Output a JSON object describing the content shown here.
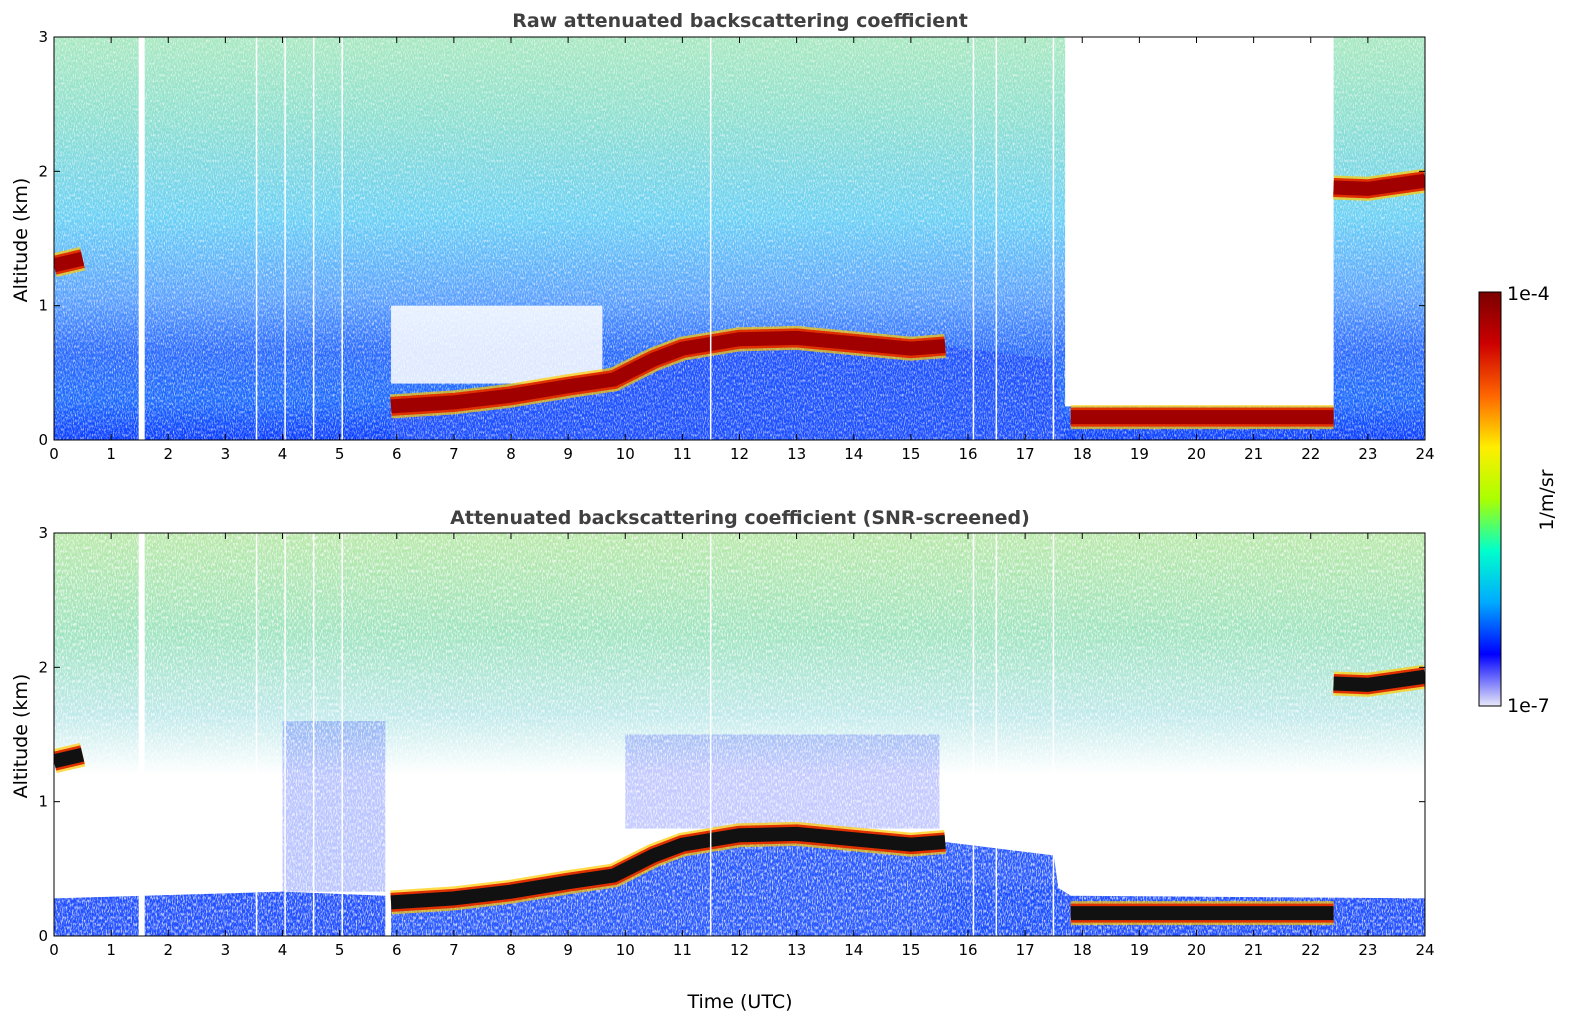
{
  "chart_data": [
    {
      "type": "heatmap",
      "title": "Raw attenuated backscattering coefficient",
      "xlabel": "",
      "ylabel": "Altitude (km)",
      "xlim": [
        0,
        24
      ],
      "ylim": [
        0,
        3
      ],
      "xticks": [
        "0",
        "1",
        "2",
        "3",
        "4",
        "5",
        "6",
        "7",
        "8",
        "9",
        "10",
        "11",
        "12",
        "13",
        "14",
        "15",
        "16",
        "17",
        "18",
        "19",
        "20",
        "21",
        "22",
        "23",
        "24"
      ],
      "yticks": [
        "0",
        "1",
        "2",
        "3"
      ],
      "screened": false,
      "layers": [
        {
          "name": "aerosol layer top",
          "t": [
            5.9,
            7,
            8,
            9,
            9.8,
            10.5,
            11,
            12,
            13,
            14,
            15,
            15.6
          ],
          "alt_km": [
            0.25,
            0.28,
            0.33,
            0.4,
            0.45,
            0.6,
            0.68,
            0.75,
            0.76,
            0.72,
            0.68,
            0.7
          ]
        },
        {
          "name": "cloud early",
          "t": [
            0,
            0.5
          ],
          "alt_km": [
            1.3,
            1.35
          ]
        },
        {
          "name": "cloud late",
          "t": [
            22.4,
            23,
            24
          ],
          "alt_km": [
            1.88,
            1.87,
            1.93
          ]
        },
        {
          "name": "night layer",
          "t": [
            17.8,
            20,
            22.4
          ],
          "alt_km": [
            0.17,
            0.17,
            0.17
          ]
        }
      ]
    },
    {
      "type": "heatmap",
      "title": "Attenuated backscattering coefficient (SNR-screened)",
      "xlabel": "Time (UTC)",
      "ylabel": "Altitude (km)",
      "xlim": [
        0,
        24
      ],
      "ylim": [
        0,
        3
      ],
      "xticks": [
        "0",
        "1",
        "2",
        "3",
        "4",
        "5",
        "6",
        "7",
        "8",
        "9",
        "10",
        "11",
        "12",
        "13",
        "14",
        "15",
        "16",
        "17",
        "18",
        "19",
        "20",
        "21",
        "22",
        "23",
        "24"
      ],
      "yticks": [
        "0",
        "1",
        "2",
        "3"
      ],
      "screened": true,
      "layers": [
        {
          "name": "aerosol layer top",
          "t": [
            5.9,
            7,
            8,
            9,
            9.8,
            10.5,
            11,
            12,
            13,
            14,
            15,
            15.6
          ],
          "alt_km": [
            0.25,
            0.28,
            0.33,
            0.4,
            0.45,
            0.6,
            0.68,
            0.75,
            0.76,
            0.72,
            0.68,
            0.7
          ]
        },
        {
          "name": "cloud early",
          "t": [
            0,
            0.5
          ],
          "alt_km": [
            1.3,
            1.35
          ]
        },
        {
          "name": "cloud late",
          "t": [
            22.4,
            23,
            24
          ],
          "alt_km": [
            1.88,
            1.87,
            1.93
          ]
        },
        {
          "name": "night layer",
          "t": [
            17.8,
            20,
            22.4
          ],
          "alt_km": [
            0.17,
            0.17,
            0.17
          ]
        }
      ]
    }
  ],
  "colorbar": {
    "max_label": "1e-4",
    "min_label": "1e-7",
    "unit_label": "1/m/sr",
    "colors": [
      "#e8e8f8",
      "#0000ff",
      "#00aaff",
      "#00ffcc",
      "#aaff00",
      "#ffee00",
      "#ff6600",
      "#cc0000",
      "#7a0000"
    ]
  }
}
